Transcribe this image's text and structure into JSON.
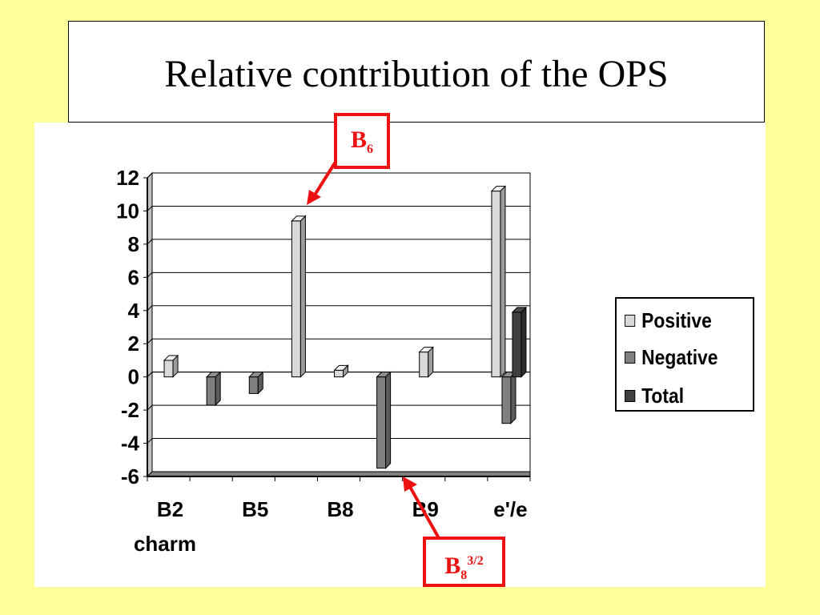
{
  "slide": {
    "title": "Relative contribution of the OPS",
    "background": "#ffff99"
  },
  "chart_data": {
    "type": "bar",
    "categories": [
      "B2",
      "",
      "B5",
      "",
      "B8",
      "",
      "B9",
      "",
      "e'/e"
    ],
    "series": [
      {
        "name": "Positive",
        "color": "#d9d9d9",
        "values": [
          1.0,
          null,
          null,
          9.4,
          0.4,
          null,
          1.5,
          null,
          11.2
        ]
      },
      {
        "name": "Negative",
        "color": "#808080",
        "values": [
          null,
          -1.7,
          -1.0,
          null,
          null,
          -5.5,
          null,
          null,
          -2.8
        ]
      },
      {
        "name": "Total",
        "color": "#404040",
        "values": [
          null,
          null,
          null,
          null,
          null,
          null,
          null,
          null,
          3.9
        ]
      }
    ],
    "x_sublabels": [
      "charm"
    ],
    "ylim": [
      -6,
      12
    ],
    "yticks": [
      "12",
      "10",
      "8",
      "6",
      "4",
      "2",
      "0",
      "-2",
      "-4",
      "-6"
    ],
    "grid": true,
    "legend_position": "right"
  },
  "legend": {
    "items": [
      {
        "label": "Positive",
        "color": "#d9d9d9"
      },
      {
        "label": "Negative",
        "color": "#808080"
      },
      {
        "label": "Total",
        "color": "#404040"
      }
    ]
  },
  "callouts": {
    "b6": {
      "base": "B",
      "sub": "6"
    },
    "b8": {
      "base": "B",
      "sub": "8",
      "sup": "3/2"
    },
    "color": "#ee1111"
  }
}
